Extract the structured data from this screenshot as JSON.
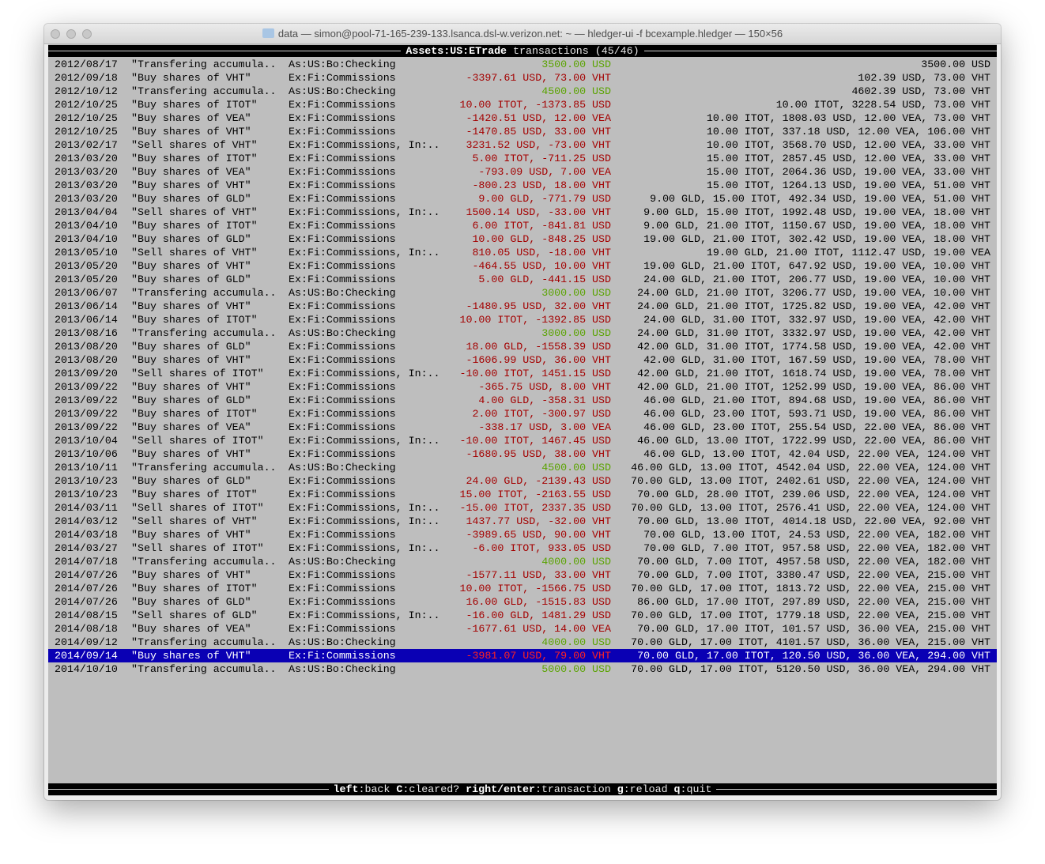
{
  "window": {
    "title": "data — simon@pool-71-165-239-133.lsanca.dsl-w.verizon.net: ~ — hledger-ui -f bcexample.hledger — 150×56"
  },
  "header": {
    "account": "Assets:US:ETrade",
    "label": "transactions",
    "position": "(45/46)"
  },
  "colors": {
    "inflow": "#5aa300",
    "outflow": "#a40000",
    "selection": "#0a00b4",
    "background": "#bebebe"
  },
  "selected_index": 44,
  "rows": [
    {
      "d": "2012/08/17",
      "desc": "\"Transfering accumula..",
      "acct": "As:US:Bo:Checking",
      "amt": "3500.00 USD",
      "c": "in",
      "bal": "3500.00 USD"
    },
    {
      "d": "2012/09/18",
      "desc": "\"Buy shares of VHT\"",
      "acct": "Ex:Fi:Commissions",
      "amt": "-3397.61 USD, 73.00 VHT",
      "c": "out",
      "bal": "102.39 USD, 73.00 VHT"
    },
    {
      "d": "2012/10/12",
      "desc": "\"Transfering accumula..",
      "acct": "As:US:Bo:Checking",
      "amt": "4500.00 USD",
      "c": "in",
      "bal": "4602.39 USD, 73.00 VHT"
    },
    {
      "d": "2012/10/25",
      "desc": "\"Buy shares of ITOT\"",
      "acct": "Ex:Fi:Commissions",
      "amt": "10.00 ITOT, -1373.85 USD",
      "c": "out",
      "bal": "10.00 ITOT, 3228.54 USD, 73.00 VHT"
    },
    {
      "d": "2012/10/25",
      "desc": "\"Buy shares of VEA\"",
      "acct": "Ex:Fi:Commissions",
      "amt": "-1420.51 USD, 12.00 VEA",
      "c": "out",
      "bal": "10.00 ITOT, 1808.03 USD, 12.00 VEA, 73.00 VHT"
    },
    {
      "d": "2012/10/25",
      "desc": "\"Buy shares of VHT\"",
      "acct": "Ex:Fi:Commissions",
      "amt": "-1470.85 USD, 33.00 VHT",
      "c": "out",
      "bal": "10.00 ITOT, 337.18 USD, 12.00 VEA, 106.00 VHT"
    },
    {
      "d": "2013/02/17",
      "desc": "\"Sell shares of VHT\"",
      "acct": "Ex:Fi:Commissions, In:..",
      "amt": "3231.52 USD, -73.00 VHT",
      "c": "out",
      "bal": "10.00 ITOT, 3568.70 USD, 12.00 VEA, 33.00 VHT"
    },
    {
      "d": "2013/03/20",
      "desc": "\"Buy shares of ITOT\"",
      "acct": "Ex:Fi:Commissions",
      "amt": "5.00 ITOT, -711.25 USD",
      "c": "out",
      "bal": "15.00 ITOT, 2857.45 USD, 12.00 VEA, 33.00 VHT"
    },
    {
      "d": "2013/03/20",
      "desc": "\"Buy shares of VEA\"",
      "acct": "Ex:Fi:Commissions",
      "amt": "-793.09 USD, 7.00 VEA",
      "c": "out",
      "bal": "15.00 ITOT, 2064.36 USD, 19.00 VEA, 33.00 VHT"
    },
    {
      "d": "2013/03/20",
      "desc": "\"Buy shares of VHT\"",
      "acct": "Ex:Fi:Commissions",
      "amt": "-800.23 USD, 18.00 VHT",
      "c": "out",
      "bal": "15.00 ITOT, 1264.13 USD, 19.00 VEA, 51.00 VHT"
    },
    {
      "d": "2013/03/20",
      "desc": "\"Buy shares of GLD\"",
      "acct": "Ex:Fi:Commissions",
      "amt": "9.00 GLD, -771.79 USD",
      "c": "out",
      "bal": "9.00 GLD, 15.00 ITOT, 492.34 USD, 19.00 VEA, 51.00 VHT"
    },
    {
      "d": "2013/04/04",
      "desc": "\"Sell shares of VHT\"",
      "acct": "Ex:Fi:Commissions, In:..",
      "amt": "1500.14 USD, -33.00 VHT",
      "c": "out",
      "bal": "9.00 GLD, 15.00 ITOT, 1992.48 USD, 19.00 VEA, 18.00 VHT"
    },
    {
      "d": "2013/04/10",
      "desc": "\"Buy shares of ITOT\"",
      "acct": "Ex:Fi:Commissions",
      "amt": "6.00 ITOT, -841.81 USD",
      "c": "out",
      "bal": "9.00 GLD, 21.00 ITOT, 1150.67 USD, 19.00 VEA, 18.00 VHT"
    },
    {
      "d": "2013/04/10",
      "desc": "\"Buy shares of GLD\"",
      "acct": "Ex:Fi:Commissions",
      "amt": "10.00 GLD, -848.25 USD",
      "c": "out",
      "bal": "19.00 GLD, 21.00 ITOT, 302.42 USD, 19.00 VEA, 18.00 VHT"
    },
    {
      "d": "2013/05/10",
      "desc": "\"Sell shares of VHT\"",
      "acct": "Ex:Fi:Commissions, In:..",
      "amt": "810.05 USD, -18.00 VHT",
      "c": "out",
      "bal": "19.00 GLD, 21.00 ITOT, 1112.47 USD, 19.00 VEA"
    },
    {
      "d": "2013/05/20",
      "desc": "\"Buy shares of VHT\"",
      "acct": "Ex:Fi:Commissions",
      "amt": "-464.55 USD, 10.00 VHT",
      "c": "out",
      "bal": "19.00 GLD, 21.00 ITOT, 647.92 USD, 19.00 VEA, 10.00 VHT"
    },
    {
      "d": "2013/05/20",
      "desc": "\"Buy shares of GLD\"",
      "acct": "Ex:Fi:Commissions",
      "amt": "5.00 GLD, -441.15 USD",
      "c": "out",
      "bal": "24.00 GLD, 21.00 ITOT, 206.77 USD, 19.00 VEA, 10.00 VHT"
    },
    {
      "d": "2013/06/07",
      "desc": "\"Transfering accumula..",
      "acct": "As:US:Bo:Checking",
      "amt": "3000.00 USD",
      "c": "in",
      "bal": "24.00 GLD, 21.00 ITOT, 3206.77 USD, 19.00 VEA, 10.00 VHT"
    },
    {
      "d": "2013/06/14",
      "desc": "\"Buy shares of VHT\"",
      "acct": "Ex:Fi:Commissions",
      "amt": "-1480.95 USD, 32.00 VHT",
      "c": "out",
      "bal": "24.00 GLD, 21.00 ITOT, 1725.82 USD, 19.00 VEA, 42.00 VHT"
    },
    {
      "d": "2013/06/14",
      "desc": "\"Buy shares of ITOT\"",
      "acct": "Ex:Fi:Commissions",
      "amt": "10.00 ITOT, -1392.85 USD",
      "c": "out",
      "bal": "24.00 GLD, 31.00 ITOT, 332.97 USD, 19.00 VEA, 42.00 VHT"
    },
    {
      "d": "2013/08/16",
      "desc": "\"Transfering accumula..",
      "acct": "As:US:Bo:Checking",
      "amt": "3000.00 USD",
      "c": "in",
      "bal": "24.00 GLD, 31.00 ITOT, 3332.97 USD, 19.00 VEA, 42.00 VHT"
    },
    {
      "d": "2013/08/20",
      "desc": "\"Buy shares of GLD\"",
      "acct": "Ex:Fi:Commissions",
      "amt": "18.00 GLD, -1558.39 USD",
      "c": "out",
      "bal": "42.00 GLD, 31.00 ITOT, 1774.58 USD, 19.00 VEA, 42.00 VHT"
    },
    {
      "d": "2013/08/20",
      "desc": "\"Buy shares of VHT\"",
      "acct": "Ex:Fi:Commissions",
      "amt": "-1606.99 USD, 36.00 VHT",
      "c": "out",
      "bal": "42.00 GLD, 31.00 ITOT, 167.59 USD, 19.00 VEA, 78.00 VHT"
    },
    {
      "d": "2013/09/20",
      "desc": "\"Sell shares of ITOT\"",
      "acct": "Ex:Fi:Commissions, In:..",
      "amt": "-10.00 ITOT, 1451.15 USD",
      "c": "out",
      "bal": "42.00 GLD, 21.00 ITOT, 1618.74 USD, 19.00 VEA, 78.00 VHT"
    },
    {
      "d": "2013/09/22",
      "desc": "\"Buy shares of VHT\"",
      "acct": "Ex:Fi:Commissions",
      "amt": "-365.75 USD, 8.00 VHT",
      "c": "out",
      "bal": "42.00 GLD, 21.00 ITOT, 1252.99 USD, 19.00 VEA, 86.00 VHT"
    },
    {
      "d": "2013/09/22",
      "desc": "\"Buy shares of GLD\"",
      "acct": "Ex:Fi:Commissions",
      "amt": "4.00 GLD, -358.31 USD",
      "c": "out",
      "bal": "46.00 GLD, 21.00 ITOT, 894.68 USD, 19.00 VEA, 86.00 VHT"
    },
    {
      "d": "2013/09/22",
      "desc": "\"Buy shares of ITOT\"",
      "acct": "Ex:Fi:Commissions",
      "amt": "2.00 ITOT, -300.97 USD",
      "c": "out",
      "bal": "46.00 GLD, 23.00 ITOT, 593.71 USD, 19.00 VEA, 86.00 VHT"
    },
    {
      "d": "2013/09/22",
      "desc": "\"Buy shares of VEA\"",
      "acct": "Ex:Fi:Commissions",
      "amt": "-338.17 USD, 3.00 VEA",
      "c": "out",
      "bal": "46.00 GLD, 23.00 ITOT, 255.54 USD, 22.00 VEA, 86.00 VHT"
    },
    {
      "d": "2013/10/04",
      "desc": "\"Sell shares of ITOT\"",
      "acct": "Ex:Fi:Commissions, In:..",
      "amt": "-10.00 ITOT, 1467.45 USD",
      "c": "out",
      "bal": "46.00 GLD, 13.00 ITOT, 1722.99 USD, 22.00 VEA, 86.00 VHT"
    },
    {
      "d": "2013/10/06",
      "desc": "\"Buy shares of VHT\"",
      "acct": "Ex:Fi:Commissions",
      "amt": "-1680.95 USD, 38.00 VHT",
      "c": "out",
      "bal": "46.00 GLD, 13.00 ITOT, 42.04 USD, 22.00 VEA, 124.00 VHT"
    },
    {
      "d": "2013/10/11",
      "desc": "\"Transfering accumula..",
      "acct": "As:US:Bo:Checking",
      "amt": "4500.00 USD",
      "c": "in",
      "bal": "46.00 GLD, 13.00 ITOT, 4542.04 USD, 22.00 VEA, 124.00 VHT"
    },
    {
      "d": "2013/10/23",
      "desc": "\"Buy shares of GLD\"",
      "acct": "Ex:Fi:Commissions",
      "amt": "24.00 GLD, -2139.43 USD",
      "c": "out",
      "bal": "70.00 GLD, 13.00 ITOT, 2402.61 USD, 22.00 VEA, 124.00 VHT"
    },
    {
      "d": "2013/10/23",
      "desc": "\"Buy shares of ITOT\"",
      "acct": "Ex:Fi:Commissions",
      "amt": "15.00 ITOT, -2163.55 USD",
      "c": "out",
      "bal": "70.00 GLD, 28.00 ITOT, 239.06 USD, 22.00 VEA, 124.00 VHT"
    },
    {
      "d": "2014/03/11",
      "desc": "\"Sell shares of ITOT\"",
      "acct": "Ex:Fi:Commissions, In:..",
      "amt": "-15.00 ITOT, 2337.35 USD",
      "c": "out",
      "bal": "70.00 GLD, 13.00 ITOT, 2576.41 USD, 22.00 VEA, 124.00 VHT"
    },
    {
      "d": "2014/03/12",
      "desc": "\"Sell shares of VHT\"",
      "acct": "Ex:Fi:Commissions, In:..",
      "amt": "1437.77 USD, -32.00 VHT",
      "c": "out",
      "bal": "70.00 GLD, 13.00 ITOT, 4014.18 USD, 22.00 VEA, 92.00 VHT"
    },
    {
      "d": "2014/03/18",
      "desc": "\"Buy shares of VHT\"",
      "acct": "Ex:Fi:Commissions",
      "amt": "-3989.65 USD, 90.00 VHT",
      "c": "out",
      "bal": "70.00 GLD, 13.00 ITOT, 24.53 USD, 22.00 VEA, 182.00 VHT"
    },
    {
      "d": "2014/03/27",
      "desc": "\"Sell shares of ITOT\"",
      "acct": "Ex:Fi:Commissions, In:..",
      "amt": "-6.00 ITOT, 933.05 USD",
      "c": "out",
      "bal": "70.00 GLD, 7.00 ITOT, 957.58 USD, 22.00 VEA, 182.00 VHT"
    },
    {
      "d": "2014/07/18",
      "desc": "\"Transfering accumula..",
      "acct": "As:US:Bo:Checking",
      "amt": "4000.00 USD",
      "c": "in",
      "bal": "70.00 GLD, 7.00 ITOT, 4957.58 USD, 22.00 VEA, 182.00 VHT"
    },
    {
      "d": "2014/07/26",
      "desc": "\"Buy shares of VHT\"",
      "acct": "Ex:Fi:Commissions",
      "amt": "-1577.11 USD, 33.00 VHT",
      "c": "out",
      "bal": "70.00 GLD, 7.00 ITOT, 3380.47 USD, 22.00 VEA, 215.00 VHT"
    },
    {
      "d": "2014/07/26",
      "desc": "\"Buy shares of ITOT\"",
      "acct": "Ex:Fi:Commissions",
      "amt": "10.00 ITOT, -1566.75 USD",
      "c": "out",
      "bal": "70.00 GLD, 17.00 ITOT, 1813.72 USD, 22.00 VEA, 215.00 VHT"
    },
    {
      "d": "2014/07/26",
      "desc": "\"Buy shares of GLD\"",
      "acct": "Ex:Fi:Commissions",
      "amt": "16.00 GLD, -1515.83 USD",
      "c": "out",
      "bal": "86.00 GLD, 17.00 ITOT, 297.89 USD, 22.00 VEA, 215.00 VHT"
    },
    {
      "d": "2014/08/15",
      "desc": "\"Sell shares of GLD\"",
      "acct": "Ex:Fi:Commissions, In:..",
      "amt": "-16.00 GLD, 1481.29 USD",
      "c": "out",
      "bal": "70.00 GLD, 17.00 ITOT, 1779.18 USD, 22.00 VEA, 215.00 VHT"
    },
    {
      "d": "2014/08/18",
      "desc": "\"Buy shares of VEA\"",
      "acct": "Ex:Fi:Commissions",
      "amt": "-1677.61 USD, 14.00 VEA",
      "c": "out",
      "bal": "70.00 GLD, 17.00 ITOT, 101.57 USD, 36.00 VEA, 215.00 VHT"
    },
    {
      "d": "2014/09/12",
      "desc": "\"Transfering accumula..",
      "acct": "As:US:Bo:Checking",
      "amt": "4000.00 USD",
      "c": "in",
      "bal": "70.00 GLD, 17.00 ITOT, 4101.57 USD, 36.00 VEA, 215.00 VHT"
    },
    {
      "d": "2014/09/14",
      "desc": "\"Buy shares of VHT\"",
      "acct": "Ex:Fi:Commissions",
      "amt": "-3981.07 USD, 79.00 VHT",
      "c": "out",
      "bal": "70.00 GLD, 17.00 ITOT, 120.50 USD, 36.00 VEA, 294.00 VHT"
    },
    {
      "d": "2014/10/10",
      "desc": "\"Transfering accumula..",
      "acct": "As:US:Bo:Checking",
      "amt": "5000.00 USD",
      "c": "in",
      "bal": "70.00 GLD, 17.00 ITOT, 5120.50 USD, 36.00 VEA, 294.00 VHT"
    }
  ],
  "footer": {
    "keys": [
      {
        "key": "left",
        "action": "back"
      },
      {
        "key": "C",
        "action": "cleared?"
      },
      {
        "key": "right/enter",
        "action": "transaction"
      },
      {
        "key": "g",
        "action": "reload"
      },
      {
        "key": "q",
        "action": "quit"
      }
    ]
  }
}
